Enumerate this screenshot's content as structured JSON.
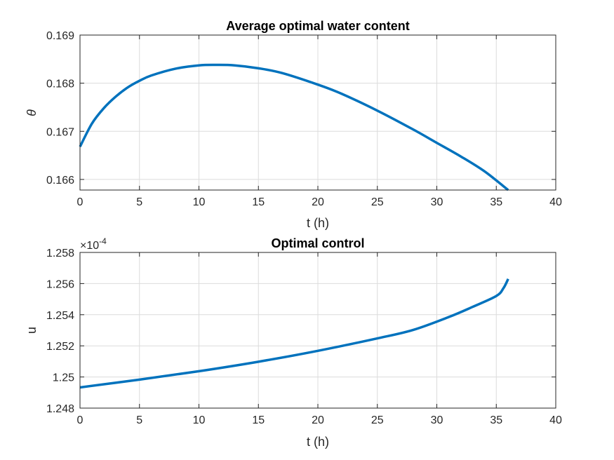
{
  "chart_data": [
    {
      "type": "line",
      "title": "Average optimal water content",
      "xlabel": "t (h)",
      "ylabel": "θ",
      "xlim": [
        0,
        40
      ],
      "ylim": [
        0.16578,
        0.169
      ],
      "xticks": [
        0,
        5,
        10,
        15,
        20,
        25,
        30,
        35,
        40
      ],
      "xtick_labels": [
        "0",
        "5",
        "10",
        "15",
        "20",
        "25",
        "30",
        "35",
        "40"
      ],
      "yticks": [
        0.166,
        0.167,
        0.168,
        0.169
      ],
      "ytick_labels": [
        "0.166",
        "0.167",
        "0.168",
        "0.169"
      ],
      "grid": true,
      "series": [
        {
          "name": "theta",
          "color": "#0072BD",
          "x": [
            0,
            1,
            2,
            3,
            4,
            5,
            6,
            8,
            10,
            11.5,
            13,
            15,
            17,
            20,
            22,
            25,
            28,
            30,
            32,
            34,
            36
          ],
          "y": [
            0.16668,
            0.16716,
            0.16748,
            0.16772,
            0.16791,
            0.16805,
            0.16816,
            0.1683,
            0.16837,
            0.16838,
            0.16837,
            0.16831,
            0.16821,
            0.16797,
            0.16778,
            0.16743,
            0.16704,
            0.16676,
            0.16648,
            0.16617,
            0.16578
          ]
        }
      ]
    },
    {
      "type": "line",
      "title": "Optimal control",
      "xlabel": "t (h)",
      "ylabel": "u",
      "exponent_label": "×10",
      "exponent_power": "-4",
      "xlim": [
        0,
        40
      ],
      "ylim": [
        1.248,
        1.258
      ],
      "xticks": [
        0,
        5,
        10,
        15,
        20,
        25,
        30,
        35,
        40
      ],
      "xtick_labels": [
        "0",
        "5",
        "10",
        "15",
        "20",
        "25",
        "30",
        "35",
        "40"
      ],
      "yticks": [
        1.248,
        1.25,
        1.252,
        1.254,
        1.256,
        1.258
      ],
      "ytick_labels": [
        "1.248",
        "1.25",
        "1.252",
        "1.254",
        "1.256",
        "1.258"
      ],
      "grid": true,
      "series": [
        {
          "name": "u",
          "color": "#0072BD",
          "x": [
            0,
            5,
            10,
            15,
            20,
            25,
            28,
            31,
            33,
            35,
            35.6,
            36
          ],
          "y": [
            1.24933,
            1.24983,
            1.25037,
            1.25098,
            1.25168,
            1.25248,
            1.25302,
            1.25385,
            1.2545,
            1.2552,
            1.2557,
            1.2563
          ]
        }
      ]
    }
  ]
}
